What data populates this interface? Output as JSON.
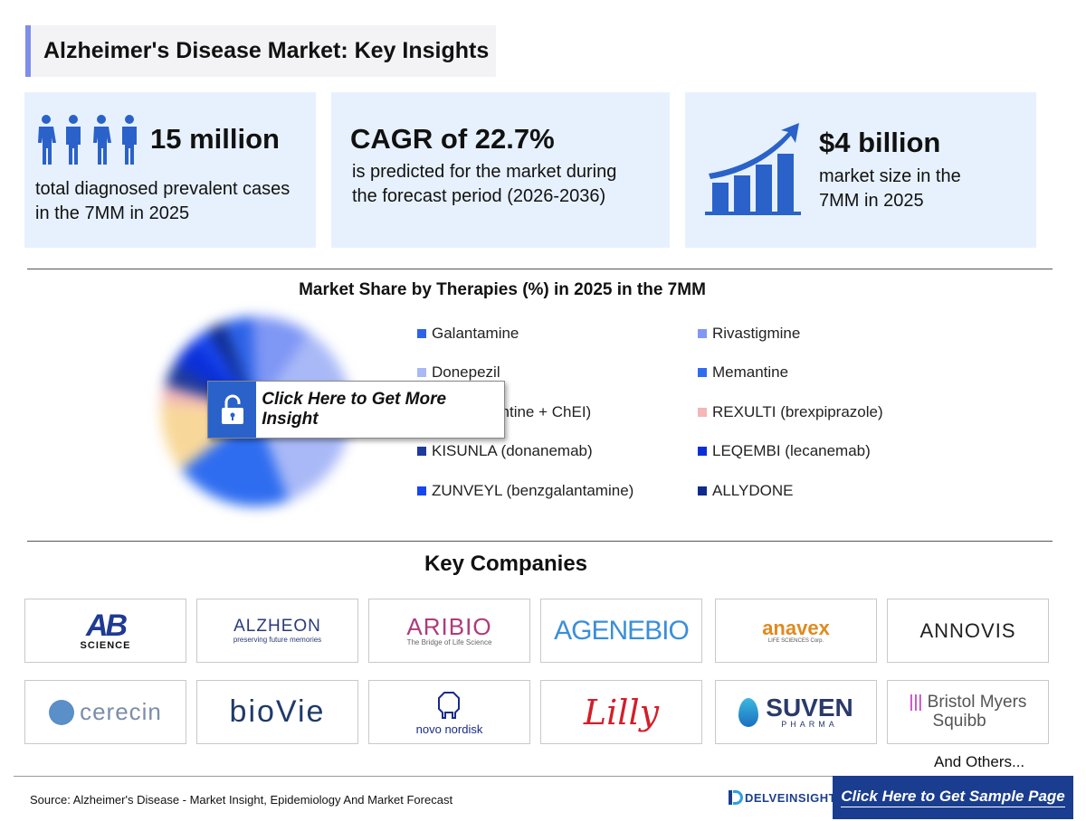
{
  "header": {
    "title": "Alzheimer's Disease Market: Key Insights"
  },
  "stats": {
    "cases_value": "15 million",
    "cases_text_1": "total diagnosed prevalent cases",
    "cases_text_2": "in the 7MM in 2025",
    "cagr_value": "CAGR of 22.7%",
    "cagr_text_1": "is predicted for the market during",
    "cagr_text_2": "the forecast period (2026-2036)",
    "market_value": "$4 billion",
    "market_text_1": "market size in the",
    "market_text_2": "7MM in 2025"
  },
  "chart_data": {
    "type": "pie",
    "title": "Market Share by Therapies (%) in 2025 in the 7MM",
    "legend_position": "right",
    "labels": [
      "Galantamine",
      "Rivastigmine",
      "Donepezil",
      "Memantine",
      "Combination (Memantine + ChEI)",
      "REXULTI (brexpiprazole)",
      "KISUNLA (donanemab)",
      "LEQEMBI (lecanemab)",
      "ZUNVEYL (benzgalantamine)",
      "ALLYDONE"
    ],
    "visible_labels": [
      "Galantamine",
      "Rivastigmine",
      "Donepezil",
      "Memantine",
      "on (Memantine + ChEI)",
      "REXULTI (brexpiprazole)",
      "KISUNLA (donanemab)",
      "LEQEMBI (lecanemab)",
      "ZUNVEYL (benzgalantamine)",
      "ALLYDONE"
    ],
    "colors": [
      "#2d63e8",
      "#7f97f5",
      "#a9b9f7",
      "#2f6df0",
      "#f8d89a",
      "#f4b6b6",
      "#1e3a9a",
      "#0a2fd8",
      "#1746f0",
      "#0f2a8a"
    ],
    "values": [
      5,
      10,
      35,
      20,
      12,
      3,
      4,
      5,
      3,
      3
    ],
    "note_blurred": true
  },
  "insight_button": {
    "label": "Click Here to Get More Insight"
  },
  "companies": {
    "title": "Key Companies",
    "others": "And Others...",
    "logos": [
      {
        "name": "AB SCIENCE",
        "top": "AB",
        "bottom": "SCIENCE"
      },
      {
        "name": "ALZHEON",
        "tagline": "preserving future memories"
      },
      {
        "name": "ARIBIO",
        "tagline": "The Bridge of Life Science"
      },
      {
        "name": "AGENEBIO"
      },
      {
        "name": "anavex",
        "tagline": "LIFE SCIENCES Corp."
      },
      {
        "name": "ANNOVIS"
      },
      {
        "name": "cerecin"
      },
      {
        "name": "bioVie"
      },
      {
        "name": "novo nordisk"
      },
      {
        "name": "Lilly"
      },
      {
        "name": "SUVEN",
        "tagline": "PHARMA"
      },
      {
        "name": "Bristol Myers",
        "name2": "Squibb"
      }
    ]
  },
  "footer": {
    "source": "Source: Alzheimer's Disease - Market Insight, Epidemiology And Market Forecast",
    "brand": "DELVEINSIGHT",
    "sample_button": "Click Here to Get Sample Page"
  }
}
